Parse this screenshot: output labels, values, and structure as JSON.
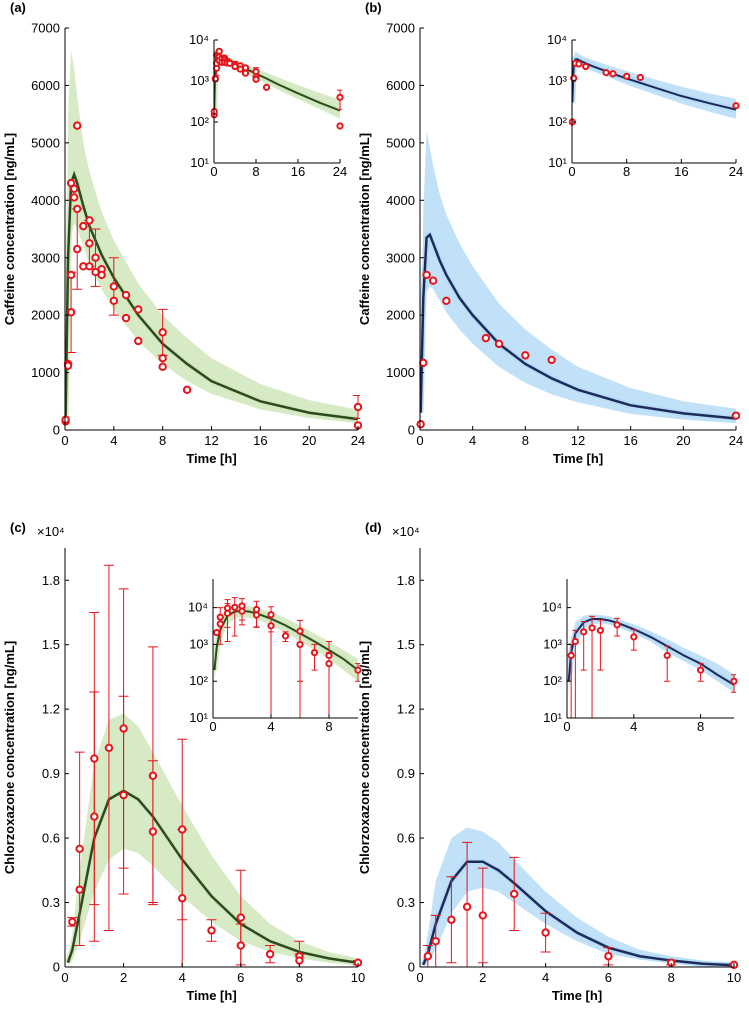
{
  "chart_data": [
    {
      "type": "line",
      "label": "(a)",
      "xlabel": "Time [h]",
      "ylabel": "Caffeine concentration [ng/mL]",
      "xlim": [
        0,
        24
      ],
      "xticks": [
        0,
        4,
        8,
        12,
        16,
        20,
        24
      ],
      "ylim": [
        0,
        7000
      ],
      "yticks": [
        0,
        1000,
        2000,
        3000,
        4000,
        5000,
        6000,
        7000
      ],
      "line_color": "#2d4a1e",
      "band_color": "#cfe8bb",
      "point_color": "#e8141b",
      "line": {
        "x": [
          0.05,
          0.25,
          0.5,
          0.75,
          1,
          1.5,
          2,
          3,
          4,
          6,
          8,
          10,
          12,
          16,
          20,
          24
        ],
        "values": [
          200,
          3000,
          4300,
          4450,
          4300,
          3900,
          3550,
          3050,
          2650,
          2000,
          1500,
          1150,
          850,
          500,
          300,
          190
        ]
      },
      "band": {
        "upper": [
          500,
          5500,
          6600,
          6300,
          5800,
          5000,
          4500,
          3800,
          3300,
          2550,
          2000,
          1600,
          1250,
          800,
          520,
          350
        ],
        "lower": [
          80,
          1500,
          3400,
          3600,
          3500,
          3200,
          2900,
          2450,
          2100,
          1550,
          1150,
          850,
          630,
          360,
          210,
          120
        ]
      },
      "points": {
        "x": [
          0.05,
          0.05,
          0.25,
          0.25,
          0.5,
          0.5,
          0.5,
          0.75,
          0.75,
          1,
          1,
          1,
          1.5,
          1.5,
          2,
          2,
          2,
          2.5,
          2.5,
          3,
          3,
          4,
          4,
          5,
          5,
          6,
          6,
          8,
          8,
          8,
          10,
          24,
          24
        ],
        "values": [
          150,
          180,
          1150,
          1120,
          2050,
          2700,
          4300,
          4200,
          4050,
          5300,
          3850,
          3150,
          3550,
          2850,
          3650,
          3250,
          2850,
          3000,
          2750,
          2800,
          2700,
          2500,
          2250,
          2350,
          1950,
          2100,
          1550,
          1700,
          1250,
          1100,
          700,
          400,
          80
        ],
        "errors": [
          null,
          null,
          null,
          null,
          700,
          null,
          null,
          null,
          null,
          null,
          null,
          700,
          null,
          null,
          null,
          400,
          null,
          500,
          null,
          null,
          null,
          500,
          null,
          null,
          null,
          null,
          null,
          400,
          null,
          null,
          null,
          200,
          null
        ]
      },
      "inset": {
        "xlim": [
          0,
          24
        ],
        "xticks": [
          0,
          8,
          16,
          24
        ],
        "ylim": [
          10,
          10000
        ],
        "yticks": [
          {
            "value": 10,
            "label": "10¹"
          },
          {
            "value": 100,
            "label": "10²"
          },
          {
            "value": 1000,
            "label": "10³"
          },
          {
            "value": 10000,
            "label": "10⁴"
          }
        ],
        "log_y": true
      }
    },
    {
      "type": "line",
      "label": "(b)",
      "xlabel": "Time [h]",
      "ylabel": "Caffeine concentration [ng/mL]",
      "xlim": [
        0,
        24
      ],
      "xticks": [
        0,
        4,
        8,
        12,
        16,
        20,
        24
      ],
      "ylim": [
        0,
        7000
      ],
      "yticks": [
        0,
        1000,
        2000,
        3000,
        4000,
        5000,
        6000,
        7000
      ],
      "line_color": "#1e2a5a",
      "band_color": "#b5dcf6",
      "point_color": "#e8141b",
      "line": {
        "x": [
          0.05,
          0.25,
          0.5,
          0.75,
          1,
          1.5,
          2,
          3,
          4,
          6,
          8,
          10,
          12,
          16,
          20,
          24
        ],
        "values": [
          300,
          2300,
          3350,
          3400,
          3250,
          2950,
          2700,
          2300,
          2000,
          1500,
          1150,
          900,
          700,
          430,
          290,
          200
        ]
      },
      "band": {
        "upper": [
          600,
          3800,
          5200,
          4900,
          4600,
          4100,
          3750,
          3250,
          2850,
          2200,
          1750,
          1400,
          1100,
          730,
          500,
          370
        ],
        "lower": [
          100,
          1200,
          2400,
          2500,
          2450,
          2250,
          2050,
          1750,
          1500,
          1100,
          820,
          620,
          480,
          280,
          180,
          120
        ]
      },
      "points": {
        "x": [
          0.05,
          0.25,
          0.5,
          1,
          2,
          5,
          6,
          8,
          10,
          24
        ],
        "values": [
          100,
          1170,
          2700,
          2600,
          2250,
          1600,
          1500,
          1300,
          1220,
          250
        ],
        "errors": [
          null,
          null,
          null,
          null,
          null,
          null,
          null,
          null,
          null,
          null
        ]
      },
      "inset": {
        "xlim": [
          0,
          24
        ],
        "xticks": [
          0,
          8,
          16,
          24
        ],
        "ylim": [
          10,
          10000
        ],
        "yticks": [
          {
            "value": 10,
            "label": "10¹"
          },
          {
            "value": 100,
            "label": "10²"
          },
          {
            "value": 1000,
            "label": "10³"
          },
          {
            "value": 10000,
            "label": "10⁴"
          }
        ],
        "log_y": true
      }
    },
    {
      "type": "line",
      "label": "(c)",
      "xlabel": "Time [h]",
      "ylabel": "Chlorzoxazone concentration [ng/mL]",
      "y_multiplier": "×10⁴",
      "xlim": [
        0,
        10
      ],
      "xticks": [
        0,
        2,
        4,
        6,
        8,
        10
      ],
      "ylim": [
        0,
        1.95
      ],
      "yticks": [
        0,
        0.3,
        0.6,
        0.9,
        1.2,
        1.5,
        1.8
      ],
      "line_color": "#2d4a1e",
      "band_color": "#cfe8bb",
      "point_color": "#e8141b",
      "line": {
        "x": [
          0.1,
          0.25,
          0.5,
          1,
          1.5,
          2,
          2.5,
          3,
          4,
          5,
          6,
          7,
          8,
          9,
          10
        ],
        "values": [
          0.02,
          0.08,
          0.25,
          0.6,
          0.78,
          0.82,
          0.78,
          0.7,
          0.5,
          0.33,
          0.2,
          0.12,
          0.07,
          0.04,
          0.02
        ]
      },
      "band": {
        "upper": [
          0.05,
          0.15,
          0.45,
          0.95,
          1.15,
          1.18,
          1.12,
          1.0,
          0.75,
          0.52,
          0.33,
          0.2,
          0.12,
          0.07,
          0.04
        ],
        "lower": [
          0.01,
          0.03,
          0.12,
          0.35,
          0.5,
          0.55,
          0.53,
          0.47,
          0.33,
          0.21,
          0.12,
          0.07,
          0.04,
          0.02,
          0.01
        ]
      },
      "points": {
        "x": [
          0.25,
          0.5,
          0.5,
          1,
          1,
          1.5,
          2,
          2,
          3,
          3,
          4,
          4,
          5,
          6,
          6,
          7,
          8,
          8,
          10
        ],
        "values": [
          0.21,
          0.55,
          0.36,
          0.97,
          0.7,
          1.02,
          1.11,
          0.8,
          0.89,
          0.63,
          0.64,
          0.32,
          0.17,
          0.23,
          0.1,
          0.06,
          0.05,
          0.03,
          0.02
        ],
        "errors": [
          0.02,
          0.45,
          null,
          0.68,
          0.58,
          0.85,
          0.65,
          0.46,
          0.6,
          0.33,
          0.42,
          0.32,
          0.05,
          0.22,
          0.1,
          0.04,
          0.07,
          0.03,
          0.01
        ]
      },
      "inset": {
        "xlim": [
          0,
          10
        ],
        "xticks": [
          0,
          4,
          8
        ],
        "ylim": [
          0.001,
          6
        ],
        "yticks": [
          {
            "value": 0.001,
            "label": "10¹"
          },
          {
            "value": 0.01,
            "label": "10²"
          },
          {
            "value": 0.1,
            "label": "10³"
          },
          {
            "value": 1,
            "label": "10⁴"
          }
        ],
        "log_y": true
      }
    },
    {
      "type": "line",
      "label": "(d)",
      "xlabel": "Time [h]",
      "ylabel": "Chlorzoxazone concentration [ng/mL]",
      "y_multiplier": "×10⁴",
      "xlim": [
        0,
        10
      ],
      "xticks": [
        0,
        2,
        4,
        6,
        8,
        10
      ],
      "ylim": [
        0,
        1.95
      ],
      "yticks": [
        0,
        0.3,
        0.6,
        0.9,
        1.2,
        1.5,
        1.8
      ],
      "line_color": "#1e2a5a",
      "band_color": "#b5dcf6",
      "point_color": "#e8141b",
      "line": {
        "x": [
          0.1,
          0.25,
          0.5,
          1,
          1.5,
          2,
          2.5,
          3,
          4,
          5,
          6,
          7,
          8,
          9,
          10
        ],
        "values": [
          0.01,
          0.06,
          0.2,
          0.4,
          0.49,
          0.49,
          0.45,
          0.39,
          0.26,
          0.16,
          0.09,
          0.05,
          0.03,
          0.015,
          0.008
        ]
      },
      "band": {
        "upper": [
          0.03,
          0.15,
          0.4,
          0.6,
          0.65,
          0.63,
          0.58,
          0.5,
          0.35,
          0.23,
          0.14,
          0.08,
          0.05,
          0.03,
          0.015
        ],
        "lower": [
          0.005,
          0.02,
          0.08,
          0.25,
          0.35,
          0.37,
          0.35,
          0.3,
          0.2,
          0.12,
          0.06,
          0.035,
          0.02,
          0.01,
          0.005
        ]
      },
      "points": {
        "x": [
          0.25,
          0.5,
          1,
          1.5,
          2,
          3,
          4,
          6,
          8,
          10
        ],
        "values": [
          0.05,
          0.12,
          0.22,
          0.28,
          0.24,
          0.34,
          0.16,
          0.05,
          0.02,
          0.01
        ],
        "errors": [
          0.05,
          0.12,
          0.2,
          0.3,
          0.22,
          0.17,
          0.09,
          0.04,
          0.01,
          0.005
        ]
      },
      "inset": {
        "xlim": [
          0,
          10
        ],
        "xticks": [
          0,
          4,
          8
        ],
        "ylim": [
          0.001,
          6
        ],
        "yticks": [
          {
            "value": 0.001,
            "label": "10¹"
          },
          {
            "value": 0.01,
            "label": "10²"
          },
          {
            "value": 0.1,
            "label": "10³"
          },
          {
            "value": 1,
            "label": "10⁴"
          }
        ],
        "log_y": true
      }
    }
  ]
}
